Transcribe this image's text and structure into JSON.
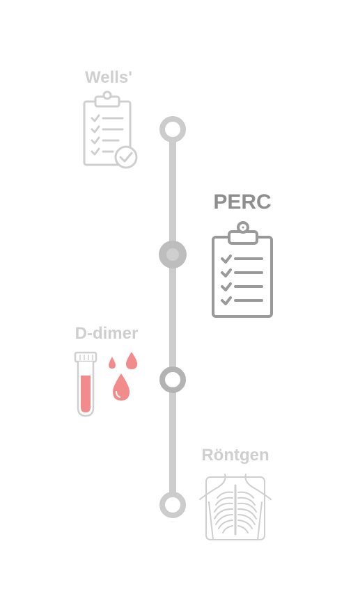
{
  "steps": [
    {
      "id": "wells",
      "label": "Wells'",
      "state": "inactive",
      "icon": "clipboard-check-icon"
    },
    {
      "id": "perc",
      "label": "PERC",
      "state": "active",
      "icon": "clipboard-checklist-icon"
    },
    {
      "id": "ddimer",
      "label": "D-dimer",
      "state": "inactive",
      "icon": "blood-test-tube-icon"
    },
    {
      "id": "rontgen",
      "label": "Röntgen",
      "state": "inactive",
      "icon": "chest-xray-icon"
    }
  ],
  "colors": {
    "line": "#cccccc",
    "inactive_text": "#cfcfcf",
    "active_text": "#8e8e8e",
    "active_icon": "#9a9a9a",
    "blood": "#f28b8b"
  }
}
